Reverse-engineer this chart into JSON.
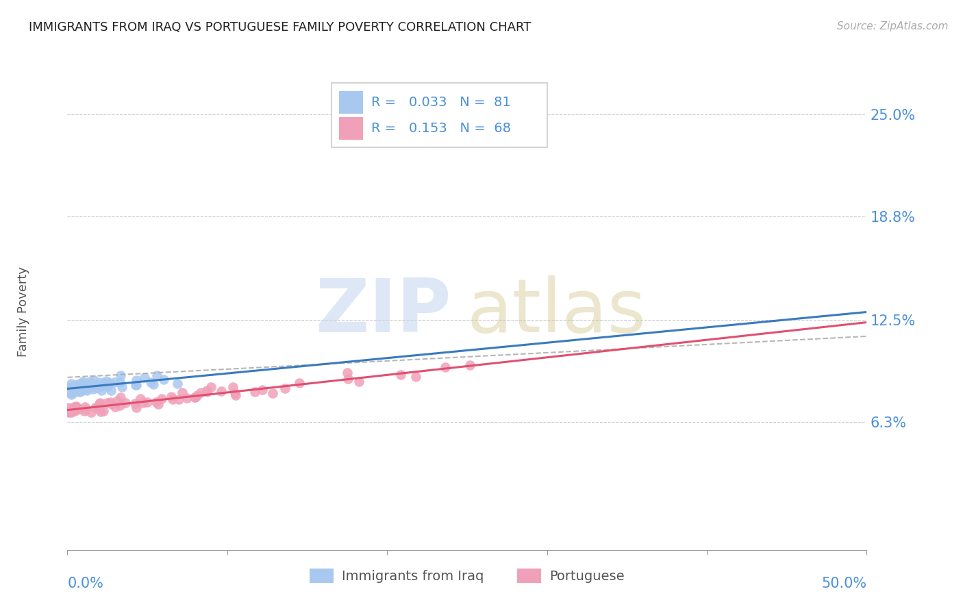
{
  "title": "IMMIGRANTS FROM IRAQ VS PORTUGUESE FAMILY POVERTY CORRELATION CHART",
  "source": "Source: ZipAtlas.com",
  "ylabel": "Family Poverty",
  "right_yticks": [
    "25.0%",
    "18.8%",
    "12.5%",
    "6.3%"
  ],
  "right_ytick_values": [
    0.25,
    0.188,
    0.125,
    0.063
  ],
  "iraq_color": "#a8c8f0",
  "portuguese_color": "#f0a0b8",
  "iraq_line_color": "#3a7abf",
  "portuguese_line_color": "#e05070",
  "dashed_line_color": "#aaaaaa",
  "iraq_R": 0.033,
  "iraq_N": 81,
  "portuguese_R": 0.153,
  "portuguese_N": 68,
  "xlim": [
    0.0,
    0.5
  ],
  "ylim": [
    -0.015,
    0.275
  ],
  "background_color": "#ffffff",
  "grid_color": "#bbbbbb",
  "title_color": "#222222",
  "axis_label_color": "#4a90d9",
  "watermark_zip_color": "#c8d8f0",
  "watermark_atlas_color": "#d4c890"
}
